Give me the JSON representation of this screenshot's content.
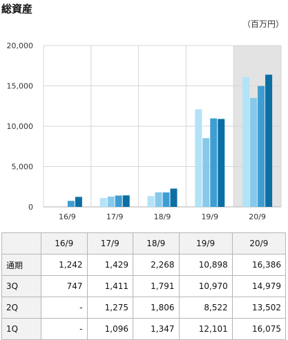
{
  "title": "総資産",
  "unit": "（百万円）",
  "chart_data": {
    "type": "bar",
    "title": "総資産",
    "categories": [
      "16/9",
      "17/9",
      "18/9",
      "19/9",
      "20/9"
    ],
    "series": [
      {
        "name": "1Q",
        "color": "#b3e3f7",
        "values": [
          null,
          1096,
          1347,
          12101,
          16075
        ]
      },
      {
        "name": "2Q",
        "color": "#86c9ea",
        "values": [
          null,
          1275,
          1806,
          8522,
          13502
        ]
      },
      {
        "name": "3Q",
        "color": "#3e9ed3",
        "values": [
          747,
          1411,
          1791,
          10970,
          14979
        ]
      },
      {
        "name": "通期",
        "color": "#0b6fa4",
        "values": [
          1242,
          1429,
          2268,
          10898,
          16386
        ]
      }
    ],
    "ylim": [
      0,
      20000
    ],
    "yticks": [
      "0",
      "5,000",
      "10,000",
      "15,000",
      "20,000"
    ],
    "grid": true,
    "highlight_category": "20/9",
    "highlight_color": "#e3e3e3"
  },
  "table": {
    "header": [
      "16/9",
      "17/9",
      "18/9",
      "19/9",
      "20/9"
    ],
    "rows": [
      {
        "label": "通期",
        "cells": [
          "1,242",
          "1,429",
          "2,268",
          "10,898",
          "16,386"
        ]
      },
      {
        "label": "3Q",
        "cells": [
          "747",
          "1,411",
          "1,791",
          "10,970",
          "14,979"
        ]
      },
      {
        "label": "2Q",
        "cells": [
          "-",
          "1,275",
          "1,806",
          "8,522",
          "13,502"
        ]
      },
      {
        "label": "1Q",
        "cells": [
          "-",
          "1,096",
          "1,347",
          "12,101",
          "16,075"
        ]
      }
    ]
  }
}
